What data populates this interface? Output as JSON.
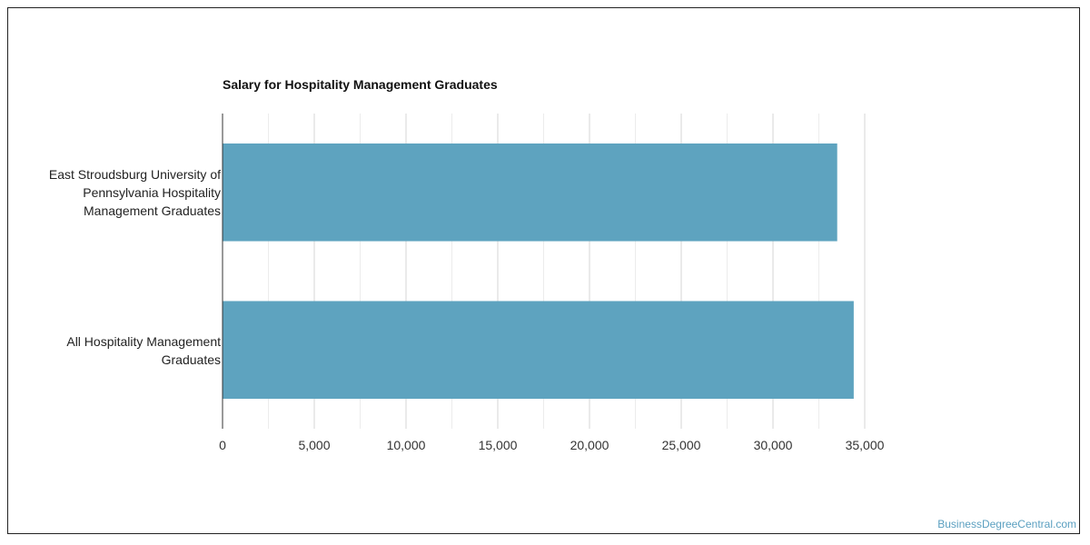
{
  "chart_data": {
    "type": "bar",
    "orientation": "horizontal",
    "title": "Salary for Hospitality Management Graduates",
    "categories": [
      [
        "East Stroudsburg University of",
        "Pennsylvania Hospitality",
        "Management Graduates"
      ],
      [
        "All Hospitality Management",
        "Graduates"
      ]
    ],
    "values": [
      33500,
      34400
    ],
    "xlim": [
      0,
      35000
    ],
    "xticks": [
      0,
      5000,
      10000,
      15000,
      20000,
      25000,
      30000,
      35000
    ],
    "xtick_labels": [
      "0",
      "5,000",
      "10,000",
      "15,000",
      "20,000",
      "25,000",
      "30,000",
      "35,000"
    ],
    "xlabel": "",
    "ylabel": "",
    "grid": true,
    "bar_color": "#5ea3bf"
  },
  "watermark": "BusinessDegreeCentral.com"
}
